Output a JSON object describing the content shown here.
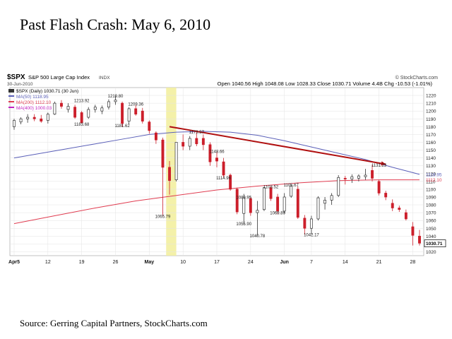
{
  "slide": {
    "title": "Past Flash Crash: May 6, 2010",
    "source": "Source: Gerring Capital Partners, StockCharts.com"
  },
  "chart_header": {
    "symbol": "$SPX",
    "name": "S&P 500 Large Cap Index",
    "exchange": "INDX",
    "date": "30-Jun-2010",
    "watermark": "© StockCharts.com",
    "quote": "Open 1040.56  High 1048.08  Low 1028.33  Close 1030.71  Volume 4.4B  Chg -10.53 (-1.01%)"
  },
  "legend": [
    {
      "label": "$SPX (Daily) 1030.71 (30 Jun)",
      "color": "#333333"
    },
    {
      "label": "MA(50) 1118.95",
      "color": "#5a5fb8"
    },
    {
      "label": "MA(200) 1112.10",
      "color": "#e03c50"
    },
    {
      "label": "MA(400) 1000.03",
      "color": "#c020c0"
    }
  ],
  "chart_data": {
    "type": "candlestick",
    "ylim": [
      1015,
      1230
    ],
    "y_ticks": [
      1020,
      1030,
      1040,
      1050,
      1060,
      1070,
      1080,
      1090,
      1100,
      1110,
      1120,
      1130,
      1140,
      1150,
      1160,
      1170,
      1180,
      1190,
      1200,
      1210,
      1220
    ],
    "x_labels": [
      {
        "label": "Apr5",
        "x": 0
      },
      {
        "label": "12",
        "x": 5
      },
      {
        "label": "19",
        "x": 10
      },
      {
        "label": "26",
        "x": 15
      },
      {
        "label": "May",
        "x": 20
      },
      {
        "label": "10",
        "x": 25
      },
      {
        "label": "17",
        "x": 30
      },
      {
        "label": "24",
        "x": 35
      },
      {
        "label": "Jun",
        "x": 40
      },
      {
        "label": "7",
        "x": 44
      },
      {
        "label": "14",
        "x": 49
      },
      {
        "label": "21",
        "x": 54
      },
      {
        "label": "28",
        "x": 59
      }
    ],
    "candles": [
      {
        "o": 1180,
        "h": 1190,
        "l": 1176,
        "c": 1188
      },
      {
        "o": 1186,
        "h": 1192,
        "l": 1183,
        "c": 1190
      },
      {
        "o": 1190,
        "h": 1196,
        "l": 1185,
        "c": 1192
      },
      {
        "o": 1192,
        "h": 1196,
        "l": 1187,
        "c": 1190
      },
      {
        "o": 1190,
        "h": 1195,
        "l": 1185,
        "c": 1187
      },
      {
        "o": 1188,
        "h": 1198,
        "l": 1184,
        "c": 1196
      },
      {
        "o": 1196,
        "h": 1212,
        "l": 1195,
        "c": 1210
      },
      {
        "o": 1210,
        "h": 1214,
        "l": 1203,
        "c": 1206
      },
      {
        "o": 1202,
        "h": 1210,
        "l": 1198,
        "c": 1206
      },
      {
        "o": 1205,
        "h": 1208,
        "l": 1190,
        "c": 1192
      },
      {
        "o": 1198,
        "h": 1200,
        "l": 1184,
        "c": 1185
      },
      {
        "o": 1192,
        "h": 1205,
        "l": 1190,
        "c": 1202
      },
      {
        "o": 1202,
        "h": 1208,
        "l": 1198,
        "c": 1205
      },
      {
        "o": 1200,
        "h": 1207,
        "l": 1196,
        "c": 1204
      },
      {
        "o": 1205,
        "h": 1215,
        "l": 1202,
        "c": 1212
      },
      {
        "o": 1212,
        "h": 1220,
        "l": 1208,
        "c": 1214
      },
      {
        "o": 1210,
        "h": 1212,
        "l": 1180,
        "c": 1184
      },
      {
        "o": 1187,
        "h": 1205,
        "l": 1183,
        "c": 1203
      },
      {
        "o": 1203,
        "h": 1208,
        "l": 1194,
        "c": 1196
      },
      {
        "o": 1200,
        "h": 1204,
        "l": 1184,
        "c": 1187
      },
      {
        "o": 1186,
        "h": 1188,
        "l": 1171,
        "c": 1175
      },
      {
        "o": 1172,
        "h": 1174,
        "l": 1158,
        "c": 1163
      },
      {
        "o": 1163,
        "h": 1166,
        "l": 1065,
        "c": 1128
      },
      {
        "o": 1128,
        "h": 1136,
        "l": 1093,
        "c": 1111
      },
      {
        "o": 1112,
        "h": 1160,
        "l": 1110,
        "c": 1160
      },
      {
        "o": 1160,
        "h": 1170,
        "l": 1150,
        "c": 1155
      },
      {
        "o": 1155,
        "h": 1168,
        "l": 1150,
        "c": 1165
      },
      {
        "o": 1165,
        "h": 1173,
        "l": 1155,
        "c": 1158
      },
      {
        "o": 1165,
        "h": 1170,
        "l": 1150,
        "c": 1157
      },
      {
        "o": 1157,
        "h": 1160,
        "l": 1130,
        "c": 1135
      },
      {
        "o": 1140,
        "h": 1148,
        "l": 1128,
        "c": 1136
      },
      {
        "o": 1135,
        "h": 1140,
        "l": 1115,
        "c": 1118
      },
      {
        "o": 1118,
        "h": 1120,
        "l": 1098,
        "c": 1100
      },
      {
        "o": 1100,
        "h": 1102,
        "l": 1068,
        "c": 1071
      },
      {
        "o": 1069,
        "h": 1094,
        "l": 1055,
        "c": 1089
      },
      {
        "o": 1088,
        "h": 1090,
        "l": 1066,
        "c": 1070
      },
      {
        "o": 1070,
        "h": 1085,
        "l": 1040,
        "c": 1073
      },
      {
        "o": 1074,
        "h": 1103,
        "l": 1072,
        "c": 1102
      },
      {
        "o": 1102,
        "h": 1104,
        "l": 1085,
        "c": 1088
      },
      {
        "o": 1090,
        "h": 1094,
        "l": 1068,
        "c": 1072
      },
      {
        "o": 1072,
        "h": 1095,
        "l": 1069,
        "c": 1090
      },
      {
        "o": 1091,
        "h": 1106,
        "l": 1089,
        "c": 1104
      },
      {
        "o": 1100,
        "h": 1104,
        "l": 1062,
        "c": 1064
      },
      {
        "o": 1063,
        "h": 1067,
        "l": 1042,
        "c": 1050
      },
      {
        "o": 1050,
        "h": 1066,
        "l": 1042,
        "c": 1062
      },
      {
        "o": 1062,
        "h": 1091,
        "l": 1060,
        "c": 1089
      },
      {
        "o": 1082,
        "h": 1090,
        "l": 1074,
        "c": 1086
      },
      {
        "o": 1086,
        "h": 1095,
        "l": 1080,
        "c": 1092
      },
      {
        "o": 1092,
        "h": 1118,
        "l": 1090,
        "c": 1115
      },
      {
        "o": 1114,
        "h": 1117,
        "l": 1106,
        "c": 1113
      },
      {
        "o": 1113,
        "h": 1119,
        "l": 1108,
        "c": 1116
      },
      {
        "o": 1114,
        "h": 1119,
        "l": 1110,
        "c": 1117
      },
      {
        "o": 1116,
        "h": 1126,
        "l": 1112,
        "c": 1118
      },
      {
        "o": 1124,
        "h": 1131,
        "l": 1110,
        "c": 1114
      },
      {
        "o": 1110,
        "h": 1112,
        "l": 1092,
        "c": 1095
      },
      {
        "o": 1095,
        "h": 1098,
        "l": 1086,
        "c": 1090
      },
      {
        "o": 1082,
        "h": 1087,
        "l": 1072,
        "c": 1076
      },
      {
        "o": 1076,
        "h": 1079,
        "l": 1071,
        "c": 1074
      },
      {
        "o": 1070,
        "h": 1074,
        "l": 1060,
        "c": 1062
      },
      {
        "o": 1052,
        "h": 1058,
        "l": 1028,
        "c": 1041
      },
      {
        "o": 1040,
        "h": 1048,
        "l": 1028,
        "c": 1031
      }
    ],
    "ma50": [
      [
        0,
        1140
      ],
      [
        4,
        1146
      ],
      [
        8,
        1152
      ],
      [
        12,
        1158
      ],
      [
        16,
        1164
      ],
      [
        20,
        1170
      ],
      [
        24,
        1173
      ],
      [
        28,
        1174
      ],
      [
        32,
        1173
      ],
      [
        36,
        1169
      ],
      [
        40,
        1162
      ],
      [
        44,
        1154
      ],
      [
        48,
        1146
      ],
      [
        52,
        1138
      ],
      [
        56,
        1128
      ],
      [
        60,
        1119
      ]
    ],
    "ma200": [
      [
        0,
        1056
      ],
      [
        6,
        1066
      ],
      [
        12,
        1076
      ],
      [
        18,
        1085
      ],
      [
        24,
        1092
      ],
      [
        30,
        1099
      ],
      [
        36,
        1104
      ],
      [
        42,
        1108
      ],
      [
        48,
        1111
      ],
      [
        54,
        1112
      ],
      [
        60,
        1112
      ]
    ],
    "trendline": {
      "from": [
        23,
        1180
      ],
      "to": [
        55,
        1132
      ],
      "color": "#b01010"
    },
    "flash_crash_highlight": {
      "x0": 22.5,
      "x1": 24,
      "color": "#f2ee9a"
    },
    "annotations": [
      {
        "text": "1213.92",
        "x": 10,
        "y": 1213.92
      },
      {
        "text": "1219.80",
        "x": 15,
        "y": 1219.8
      },
      {
        "text": "1209.36",
        "x": 18,
        "y": 1209.36
      },
      {
        "text": "1183.68",
        "x": 10,
        "y": 1183.68
      },
      {
        "text": "1181.62",
        "x": 16,
        "y": 1181.62
      },
      {
        "text": "1173.57",
        "x": 27,
        "y": 1173.57
      },
      {
        "text": "1148.66",
        "x": 30,
        "y": 1148.66
      },
      {
        "text": "1114.96",
        "x": 31,
        "y": 1114.96
      },
      {
        "text": "1065.79",
        "x": 22,
        "y": 1065.79
      },
      {
        "text": "1089.95",
        "x": 34,
        "y": 1089.95
      },
      {
        "text": "1103.52",
        "x": 38,
        "y": 1103.52
      },
      {
        "text": "1105.67",
        "x": 41,
        "y": 1105.67
      },
      {
        "text": "1055.90",
        "x": 34,
        "y": 1055.9
      },
      {
        "text": "1069.89",
        "x": 39,
        "y": 1069.89
      },
      {
        "text": "1040.78",
        "x": 36,
        "y": 1040.78
      },
      {
        "text": "1042.17",
        "x": 44,
        "y": 1042.17
      },
      {
        "text": "1131.23",
        "x": 54,
        "y": 1131.23
      }
    ],
    "right_labels": [
      {
        "text": "1118.95",
        "y": 1118.95,
        "color": "#5a5fb8"
      },
      {
        "text": "1112.10",
        "y": 1112.1,
        "color": "#e03c50"
      },
      {
        "text": "1030.71",
        "y": 1030.71,
        "color": "#000000",
        "boxed": true
      }
    ],
    "colors": {
      "up": "#333333",
      "down": "#cc1f2b",
      "ma50": "#5a5fb8",
      "ma200": "#e03c50",
      "grid": "#e3e3e3"
    }
  }
}
